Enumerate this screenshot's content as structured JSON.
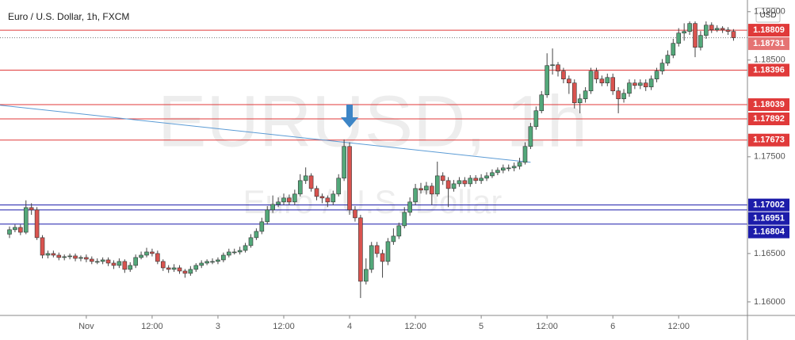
{
  "chart_data": {
    "type": "candlestick",
    "title": "Euro / U.S. Dollar, 1h, FXCM",
    "watermark": [
      "EURUSD, 1h",
      "Euro / U.S. Dollar"
    ],
    "currency": "USD",
    "up_color": "#53a87a",
    "down_color": "#d9534f",
    "ylim": [
      1.1586,
      1.1908
    ],
    "yticks": [
      {
        "value": 1.16,
        "label": "1.16000"
      },
      {
        "value": 1.165,
        "label": "1.16500"
      },
      {
        "value": 1.175,
        "label": "1.17500"
      },
      {
        "value": 1.185,
        "label": "1.18500"
      },
      {
        "value": 1.19,
        "label": "1.19000"
      }
    ],
    "categories": [
      null,
      null,
      null,
      null,
      null,
      null,
      null,
      null,
      null,
      null,
      null,
      null,
      null,
      null,
      "Nov",
      null,
      null,
      null,
      null,
      null,
      null,
      null,
      null,
      null,
      null,
      null,
      "12:00",
      null,
      null,
      null,
      null,
      null,
      null,
      null,
      null,
      null,
      null,
      null,
      "3",
      null,
      null,
      null,
      null,
      null,
      null,
      null,
      null,
      null,
      null,
      null,
      "12:00",
      null,
      null,
      null,
      null,
      null,
      null,
      null,
      null,
      null,
      null,
      null,
      "4",
      null,
      null,
      null,
      null,
      null,
      null,
      null,
      null,
      null,
      null,
      null,
      "12:00",
      null,
      null,
      null,
      null,
      null,
      null,
      null,
      null,
      null,
      null,
      null,
      "5",
      null,
      null,
      null,
      null,
      null,
      null,
      null,
      null,
      null,
      null,
      null,
      "12:00",
      null,
      null,
      null,
      null,
      null,
      null,
      null,
      null,
      null,
      null,
      null,
      "6",
      null,
      null,
      null,
      null,
      null,
      null,
      null,
      null,
      null,
      null,
      null,
      "12:00",
      null,
      null,
      null,
      null,
      null,
      null,
      null,
      null,
      null,
      null
    ],
    "open": [
      1.167,
      1.16746,
      1.1677,
      1.1672,
      1.16975,
      1.16951,
      1.16664,
      1.16483,
      1.165,
      1.16483,
      1.16459,
      1.16467,
      1.16475,
      1.1645,
      1.16459,
      1.16442,
      1.16418,
      1.16418,
      1.16434,
      1.16401,
      1.16377,
      1.16418,
      1.16336,
      1.16377,
      1.16459,
      1.16483,
      1.16516,
      1.165,
      1.16418,
      1.16352,
      1.16336,
      1.16352,
      1.16319,
      1.16295,
      1.16336,
      1.16377,
      1.16401,
      1.16418,
      1.16418,
      1.16434,
      1.16483,
      1.16516,
      1.16516,
      1.16532,
      1.16582,
      1.16664,
      1.16729,
      1.16828,
      1.16951,
      1.17008,
      1.17033,
      1.17074,
      1.17033,
      1.17115,
      1.17254,
      1.17303,
      1.17172,
      1.1709,
      1.17074,
      1.17033,
      1.17115,
      1.17279,
      1.17607,
      1.16951,
      1.16869,
      1.16213,
      1.16336,
      1.16582,
      1.165,
      1.16418,
      1.16623,
      1.1668,
      1.16787,
      1.16926,
      1.17033,
      1.17172,
      1.17156,
      1.17197,
      1.17115,
      1.17303,
      1.17254,
      1.17172,
      1.17221,
      1.17254,
      1.17221,
      1.17279,
      1.17254,
      1.17279,
      1.17303,
      1.17336,
      1.17361,
      1.17385,
      1.17385,
      1.17402,
      1.17443,
      1.17607,
      1.17812,
      1.17976,
      1.1814,
      1.18443,
      1.18451,
      1.18386,
      1.18304,
      1.18263,
      1.18058,
      1.18099,
      1.18181,
      1.18386,
      1.18304,
      1.18263,
      1.1832,
      1.18181,
      1.18099,
      1.18156,
      1.18263,
      1.18238,
      1.18263,
      1.18222,
      1.18304,
      1.18386,
      1.18468,
      1.1855,
      1.18673,
      1.18779,
      1.18796,
      1.18878,
      1.18632,
      1.18755,
      1.18861,
      1.18812,
      1.18828,
      1.18812,
      1.18796
    ],
    "high": [
      1.1678,
      1.168,
      1.168,
      1.1705,
      1.1702,
      1.1698,
      1.1669,
      1.1653,
      1.1653,
      1.1651,
      1.1649,
      1.165,
      1.165,
      1.1648,
      1.1649,
      1.1647,
      1.1645,
      1.1646,
      1.1646,
      1.1643,
      1.1645,
      1.1644,
      1.1641,
      1.1649,
      1.1652,
      1.1656,
      1.1655,
      1.1653,
      1.1644,
      1.1638,
      1.1639,
      1.1638,
      1.1634,
      1.1637,
      1.164,
      1.1643,
      1.1644,
      1.1645,
      1.1646,
      1.1651,
      1.1655,
      1.1655,
      1.1657,
      1.1661,
      1.167,
      1.1676,
      1.1687,
      1.1699,
      1.171,
      1.1708,
      1.1712,
      1.1711,
      1.1716,
      1.1732,
      1.1739,
      1.1733,
      1.172,
      1.1712,
      1.171,
      1.1715,
      1.1732,
      1.1768,
      1.1765,
      1.1699,
      1.169,
      1.1645,
      1.1662,
      1.1662,
      1.1654,
      1.1666,
      1.1676,
      1.1682,
      1.1698,
      1.1708,
      1.1722,
      1.1723,
      1.1724,
      1.1723,
      1.1745,
      1.1734,
      1.1729,
      1.1726,
      1.1729,
      1.1729,
      1.1731,
      1.1731,
      1.1732,
      1.1734,
      1.1737,
      1.1739,
      1.1742,
      1.1742,
      1.1744,
      1.1749,
      1.1765,
      1.1785,
      1.1802,
      1.1818,
      1.1857,
      1.1862,
      1.1848,
      1.1842,
      1.1834,
      1.183,
      1.1815,
      1.1822,
      1.1842,
      1.1842,
      1.1834,
      1.1836,
      1.1836,
      1.1822,
      1.182,
      1.183,
      1.183,
      1.183,
      1.183,
      1.1834,
      1.1842,
      1.1851,
      1.186,
      1.1872,
      1.1883,
      1.1888,
      1.189,
      1.189,
      1.188,
      1.189,
      1.1889,
      1.1886,
      1.1885,
      1.1884,
      1.1882
    ],
    "low": [
      1.1666,
      1.1672,
      1.1669,
      1.167,
      1.169,
      1.1664,
      1.1645,
      1.1645,
      1.1646,
      1.1643,
      1.1643,
      1.1644,
      1.1642,
      1.1642,
      1.1641,
      1.1639,
      1.1639,
      1.1639,
      1.1637,
      1.1634,
      1.1635,
      1.163,
      1.1631,
      1.1635,
      1.1644,
      1.1646,
      1.1647,
      1.1639,
      1.1632,
      1.163,
      1.1631,
      1.1629,
      1.1625,
      1.1627,
      1.1631,
      1.1635,
      1.1638,
      1.1639,
      1.1639,
      1.1641,
      1.1646,
      1.1649,
      1.1649,
      1.1651,
      1.1656,
      1.1664,
      1.167,
      1.168,
      1.1692,
      1.1698,
      1.17,
      1.17,
      1.17,
      1.1709,
      1.1722,
      1.1714,
      1.1705,
      1.1702,
      1.1698,
      1.17,
      1.1709,
      1.1725,
      1.169,
      1.1683,
      1.1604,
      1.1618,
      1.163,
      1.1646,
      1.1625,
      1.1638,
      1.1659,
      1.1665,
      1.1676,
      1.1689,
      1.17,
      1.1712,
      1.1711,
      1.17,
      1.1709,
      1.1721,
      1.1698,
      1.1714,
      1.1719,
      1.1719,
      1.1719,
      1.1722,
      1.1722,
      1.1725,
      1.1728,
      1.1731,
      1.1733,
      1.1735,
      1.1735,
      1.1737,
      1.1742,
      1.1758,
      1.1778,
      1.1795,
      1.1811,
      1.1835,
      1.1833,
      1.1826,
      1.1815,
      1.18,
      1.1795,
      1.1806,
      1.1815,
      1.1826,
      1.1823,
      1.1823,
      1.1814,
      1.1795,
      1.1806,
      1.1812,
      1.182,
      1.182,
      1.1818,
      1.1819,
      1.1827,
      1.1835,
      1.1844,
      1.1852,
      1.1864,
      1.187,
      1.1876,
      1.1853,
      1.186,
      1.1872,
      1.1878,
      1.1879,
      1.1878,
      1.1876,
      1.187
    ],
    "close": [
      1.16746,
      1.1677,
      1.1672,
      1.16975,
      1.16951,
      1.16664,
      1.16483,
      1.165,
      1.16483,
      1.16459,
      1.16467,
      1.16475,
      1.1645,
      1.16459,
      1.16442,
      1.16418,
      1.16418,
      1.16434,
      1.16401,
      1.16377,
      1.16418,
      1.16336,
      1.16377,
      1.16459,
      1.16483,
      1.16516,
      1.165,
      1.16418,
      1.16352,
      1.16336,
      1.16352,
      1.16319,
      1.16295,
      1.16336,
      1.16377,
      1.16401,
      1.16418,
      1.16418,
      1.16434,
      1.16483,
      1.16516,
      1.16516,
      1.16532,
      1.16582,
      1.16664,
      1.16729,
      1.16828,
      1.16951,
      1.17008,
      1.17033,
      1.17074,
      1.17033,
      1.17115,
      1.17254,
      1.17303,
      1.17172,
      1.1709,
      1.17074,
      1.17033,
      1.17115,
      1.17279,
      1.17607,
      1.16951,
      1.16869,
      1.16213,
      1.16336,
      1.16582,
      1.165,
      1.16418,
      1.16623,
      1.1668,
      1.16787,
      1.16926,
      1.17033,
      1.17172,
      1.17156,
      1.17197,
      1.17115,
      1.17303,
      1.17254,
      1.17172,
      1.17221,
      1.17254,
      1.17221,
      1.17279,
      1.17254,
      1.17279,
      1.17303,
      1.17336,
      1.17361,
      1.17385,
      1.17385,
      1.17402,
      1.17443,
      1.17607,
      1.17812,
      1.17976,
      1.1814,
      1.18443,
      1.18451,
      1.18386,
      1.18304,
      1.18263,
      1.18058,
      1.18099,
      1.18181,
      1.18386,
      1.18304,
      1.18263,
      1.1832,
      1.18181,
      1.18099,
      1.18156,
      1.18263,
      1.18238,
      1.18263,
      1.18222,
      1.18304,
      1.18386,
      1.18468,
      1.1855,
      1.18673,
      1.18779,
      1.18796,
      1.18878,
      1.18632,
      1.18755,
      1.18861,
      1.18812,
      1.18828,
      1.18812,
      1.18796,
      1.18731
    ],
    "levels": [
      {
        "value": 1.18809,
        "color": "#e03a3a"
      },
      {
        "value": 1.18396,
        "color": "#e03a3a"
      },
      {
        "value": 1.18039,
        "color": "#e03a3a"
      },
      {
        "value": 1.17892,
        "color": "#e03a3a"
      },
      {
        "value": 1.17673,
        "color": "#e03a3a"
      },
      {
        "value": 1.17002,
        "color": "#1c1caa"
      },
      {
        "value": 1.16951,
        "color": "#1c1caa"
      },
      {
        "value": 1.16804,
        "color": "#1c1caa"
      }
    ],
    "current_price": {
      "value": 1.18731,
      "color": "#e57373"
    },
    "trend_line": {
      "start": 1.18033,
      "end": 1.17443,
      "color": "#5b9bd5"
    }
  }
}
